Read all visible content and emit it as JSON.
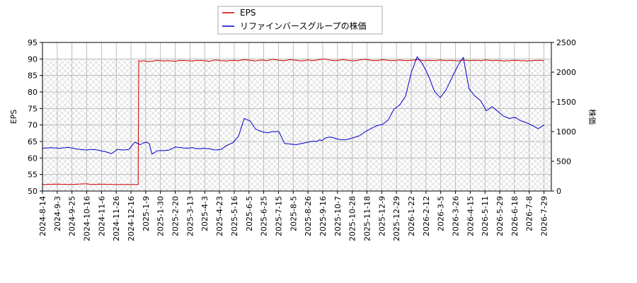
{
  "chart_data": {
    "type": "line",
    "title": "",
    "xlabel": "",
    "ylabel_left": "EPS",
    "ylabel_right": "株価",
    "ylim_left": [
      50,
      95
    ],
    "ylim_right": [
      0,
      2500
    ],
    "left_ticks": [
      "50",
      "55",
      "60",
      "65",
      "70",
      "75",
      "80",
      "85",
      "90",
      "95"
    ],
    "right_ticks": [
      "0",
      "500",
      "1000",
      "1500",
      "2000",
      "2500"
    ],
    "x_tick_labels": [
      "2024-8-14",
      "2024-9-3",
      "2024-9-25",
      "2024-10-16",
      "2024-11-6",
      "2024-11-26",
      "2024-12-16",
      "2025-1-9",
      "2025-1-30",
      "2025-2-20",
      "2025-3-13",
      "2025-4-3",
      "2025-4-23",
      "2025-5-16",
      "2025-6-5",
      "2025-6-25",
      "2025-7-15",
      "2025-8-5",
      "2025-8-26",
      "2025-9-16",
      "2025-10-7",
      "2025-10-28",
      "2025-11-18",
      "2025-12-9",
      "2025-12-29",
      "2026-1-22",
      "2026-2-12",
      "2026-3-5",
      "2026-3-26",
      "2026-4-15",
      "2026-5-11",
      "2026-5-29",
      "2026-6-18",
      "2026-7-8",
      "2026-7-29"
    ],
    "grid": true,
    "hatched_background": true,
    "legend_position": "top-center",
    "series": [
      {
        "name": "EPS",
        "axis": "left",
        "color": "#cc0000",
        "x": [
          0,
          5,
          10,
          15,
          17,
          20,
          25,
          30,
          33.2,
          33.4,
          34,
          35,
          37,
          40,
          42,
          44,
          46,
          48,
          50,
          52,
          54,
          56,
          58,
          60,
          62,
          64,
          66,
          68,
          70,
          72,
          74,
          76,
          78,
          80,
          82,
          84,
          86,
          88,
          90,
          92,
          94,
          96,
          98,
          100,
          102,
          104,
          106,
          108,
          110,
          112,
          114,
          116,
          118,
          120,
          122,
          124,
          126,
          128,
          130,
          132,
          134,
          136,
          138,
          140,
          142,
          144,
          146,
          148,
          150,
          152,
          154,
          156,
          158,
          160,
          162,
          164,
          166,
          168,
          170,
          172,
          174
        ],
        "values": [
          52.0,
          52.1,
          52.0,
          52.2,
          52.0,
          52.1,
          52.0,
          52.0,
          52.0,
          89.5,
          89.3,
          89.5,
          89.2,
          89.6,
          89.4,
          89.5,
          89.3,
          89.6,
          89.5,
          89.4,
          89.6,
          89.5,
          89.3,
          89.7,
          89.5,
          89.4,
          89.6,
          89.5,
          89.8,
          89.6,
          89.4,
          89.7,
          89.5,
          89.9,
          89.6,
          89.5,
          89.8,
          89.6,
          89.4,
          89.7,
          89.5,
          89.8,
          90.0,
          89.6,
          89.5,
          89.8,
          89.6,
          89.4,
          89.7,
          89.9,
          89.6,
          89.5,
          89.8,
          89.6,
          89.5,
          89.7,
          89.5,
          89.6,
          89.8,
          89.5,
          89.6,
          89.5,
          89.7,
          89.5,
          89.6,
          89.4,
          89.7,
          89.5,
          89.6,
          89.5,
          89.7,
          89.5,
          89.6,
          89.4,
          89.5,
          89.6,
          89.5,
          89.4,
          89.5,
          89.6,
          89.5
        ]
      },
      {
        "name": "リファインバースグループの株価",
        "axis": "right",
        "color": "#0000cc",
        "x": [
          0,
          3,
          6,
          9,
          12,
          15,
          18,
          20,
          22,
          24,
          26,
          28,
          30,
          32,
          34,
          35,
          36,
          37,
          38,
          40,
          42,
          44,
          46,
          48,
          50,
          52,
          54,
          56,
          58,
          60,
          62,
          64,
          66,
          68,
          70,
          72,
          74,
          76,
          78,
          80,
          82,
          84,
          86,
          88,
          90,
          92,
          94,
          95,
          96,
          97,
          98,
          99,
          100,
          102,
          104,
          106,
          108,
          110,
          112,
          114,
          116,
          118,
          120,
          122,
          124,
          126,
          128,
          130,
          132,
          134,
          136,
          138,
          140,
          142,
          144,
          146,
          148,
          150,
          152,
          154,
          156,
          158,
          160,
          162,
          164,
          166,
          168,
          170,
          172,
          174
        ],
        "values": [
          720,
          730,
          720,
          735,
          705,
          690,
          700,
          680,
          660,
          630,
          700,
          690,
          700,
          820,
          780,
          810,
          820,
          800,
          620,
          680,
          680,
          690,
          740,
          730,
          720,
          730,
          710,
          720,
          710,
          690,
          700,
          770,
          810,
          920,
          1220,
          1180,
          1040,
          1000,
          980,
          1000,
          1000,
          800,
          790,
          780,
          800,
          820,
          840,
          830,
          860,
          850,
          890,
          900,
          910,
          880,
          860,
          870,
          900,
          930,
          1000,
          1050,
          1100,
          1120,
          1200,
          1380,
          1450,
          1600,
          2000,
          2260,
          2130,
          1930,
          1680,
          1570,
          1700,
          1900,
          2100,
          2250,
          1720,
          1600,
          1520,
          1350,
          1420,
          1340,
          1260,
          1220,
          1240,
          1180,
          1150,
          1100,
          1050,
          1110
        ]
      }
    ]
  }
}
